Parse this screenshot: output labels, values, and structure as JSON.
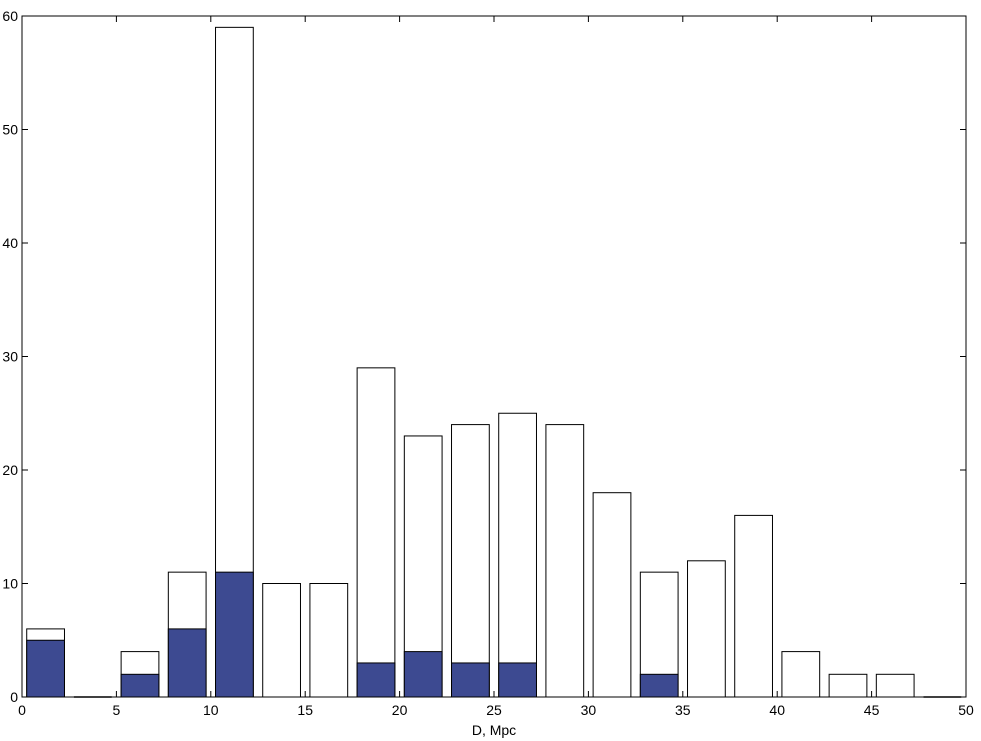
{
  "chart_data": {
    "type": "bar",
    "xlabel": "D, Mpc",
    "ylabel": "",
    "xlim": [
      0,
      50
    ],
    "ylim": [
      0,
      60
    ],
    "x_ticks": [
      0,
      5,
      10,
      15,
      20,
      25,
      30,
      35,
      40,
      45,
      50
    ],
    "y_ticks": [
      0,
      10,
      20,
      30,
      40,
      50,
      60
    ],
    "bin_width": 2.5,
    "bar_width": 2.0,
    "categories": [
      1.25,
      3.75,
      6.25,
      8.75,
      11.25,
      13.75,
      16.25,
      18.75,
      21.25,
      23.75,
      26.25,
      28.75,
      31.25,
      33.75,
      36.25,
      38.75,
      41.25,
      43.75,
      46.25,
      48.75
    ],
    "series": [
      {
        "values": [
          6,
          0,
          4,
          11,
          59,
          10,
          10,
          29,
          23,
          24,
          25,
          24,
          18,
          11,
          12,
          16,
          4,
          2,
          2,
          0
        ],
        "color": "#ffffff"
      },
      {
        "values": [
          5,
          0,
          2,
          6,
          11,
          0,
          0,
          3,
          4,
          3,
          3,
          0,
          0,
          2,
          0,
          0,
          0,
          0,
          0,
          0
        ],
        "color": "#3d4a91"
      }
    ],
    "grid": false,
    "legend": "none"
  }
}
